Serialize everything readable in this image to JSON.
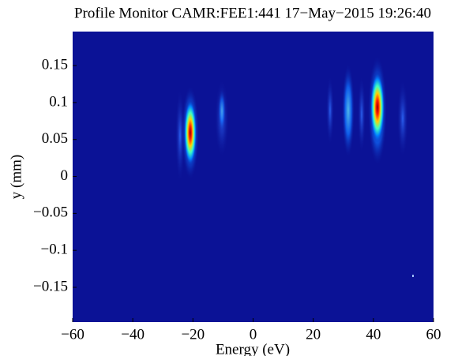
{
  "chart_data": {
    "type": "image",
    "title": "Profile Monitor CAMR:FEE1:441 17−May−2015 19:26:40",
    "x_label": "Energy  (eV)",
    "y_label": "y  (mm)",
    "xlim": [
      -60,
      60
    ],
    "xticks": [
      {
        "value": -60,
        "label": "−60"
      },
      {
        "value": -40,
        "label": "−40"
      },
      {
        "value": -20,
        "label": "−20"
      },
      0,
      20,
      40,
      60
    ],
    "ylim": [
      -0.197,
      0.196
    ],
    "yticks": [
      {
        "value": -0.15,
        "label": "−0.15"
      },
      {
        "value": -0.1,
        "label": "−0.1"
      },
      {
        "value": -0.05,
        "label": "−0.05"
      },
      0,
      0.05,
      0.1,
      0.15
    ],
    "background": "#0b1296"
  }
}
